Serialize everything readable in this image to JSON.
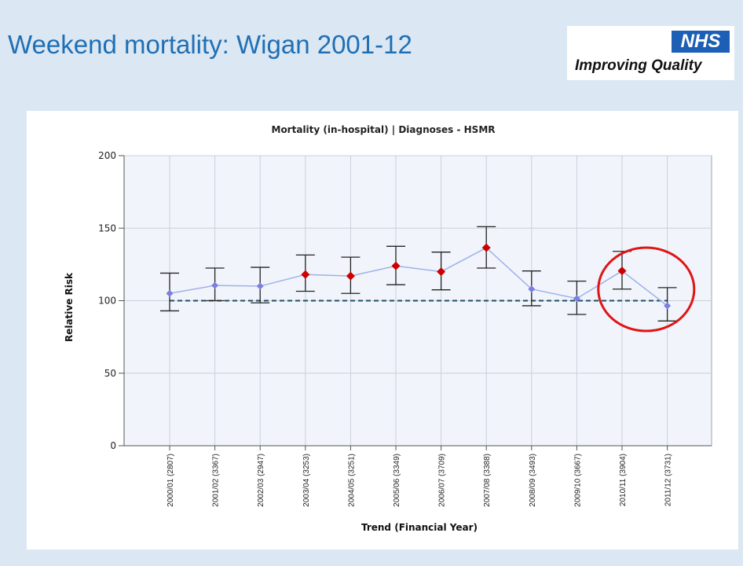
{
  "slide": {
    "title": "Weekend mortality: Wigan 2001-12"
  },
  "logo": {
    "badge": "NHS",
    "tagline": "Improving Quality"
  },
  "colors": {
    "title": "#1f6fb5",
    "background": "#dbe7f2",
    "plot_background": "#f1f5fb",
    "line": "#9fb0e8",
    "marker_normal": "#7b7fe0",
    "marker_high": "#cc0000",
    "baseline": "#1f4e66",
    "highlight_circle": "#e01515"
  },
  "chart_data": {
    "type": "line",
    "title": "Mortality (in-hospital) |  Diagnoses - HSMR",
    "xlabel": "Trend (Financial Year)",
    "ylabel": "Relative Risk",
    "ylim": [
      0,
      200
    ],
    "yticks": [
      0,
      50,
      100,
      150,
      200
    ],
    "grid": true,
    "baseline": 100,
    "categories": [
      "2000/01 (2807)",
      "2001/02 (3367)",
      "2002/03 (2947)",
      "2003/04 (3253)",
      "2004/05 (3251)",
      "2005/06 (3349)",
      "2006/07 (3709)",
      "2007/08 (3388)",
      "2008/09 (3493)",
      "2009/10 (3667)",
      "2010/11 (3904)",
      "2011/12 (3731)"
    ],
    "series": [
      {
        "values": [
          105,
          110.5,
          110,
          118,
          117,
          124,
          120,
          136.5,
          108,
          101.5,
          120.5,
          96.5
        ],
        "lower": [
          93,
          100,
          98.5,
          106.5,
          105,
          111,
          107.5,
          122.5,
          96.5,
          90.5,
          108,
          86
        ],
        "upper": [
          119,
          122.5,
          123,
          131.5,
          130,
          137.5,
          133.5,
          151,
          120.5,
          113.5,
          134,
          109
        ],
        "flag": [
          "normal",
          "normal",
          "normal",
          "high",
          "high",
          "high",
          "high",
          "high",
          "normal",
          "normal",
          "high",
          "normal"
        ]
      }
    ],
    "annotation": {
      "type": "circle",
      "around_category": "2010/11 (3904)"
    }
  }
}
